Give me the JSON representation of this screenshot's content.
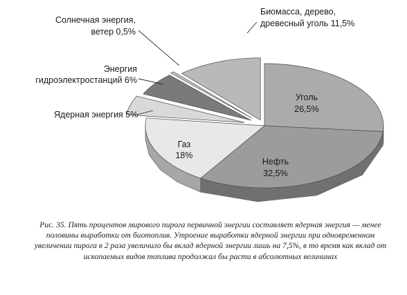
{
  "chart_data": {
    "type": "pie",
    "style": "3d-exploded",
    "slices": [
      {
        "id": "coal",
        "label": "Уголь",
        "value_label": "26,5%",
        "value": 26.5,
        "color": "#ababab"
      },
      {
        "id": "oil",
        "label": "Нефть",
        "value_label": "32,5%",
        "value": 32.5,
        "color": "#9c9c9c"
      },
      {
        "id": "gas",
        "label": "Газ",
        "value_label": "18%",
        "value": 18,
        "color": "#e8e8e8"
      },
      {
        "id": "nuclear",
        "label": "Ядерная энергия 5%",
        "value": 5,
        "color": "#d9d9d9"
      },
      {
        "id": "hydro",
        "label_lines": [
          "Энергия",
          "гидроэлектростанций 6%"
        ],
        "value": 6,
        "color": "#7a7a7a"
      },
      {
        "id": "solar",
        "label_lines": [
          "Солнечная энергия,",
          "ветер 0,5%"
        ],
        "value": 0.5,
        "color": "#c8c8c8"
      },
      {
        "id": "biomass",
        "label_lines": [
          "Биомасса, дерево,",
          "древесный уголь 11,5%"
        ],
        "value": 11.5,
        "color": "#b9b9b9"
      }
    ]
  },
  "caption": "Рис. 35. Пять процентов мирового пирога первичной энергии составляет ядерная энергия — менее половины выработки от биотоплив. Утроение выработки ядерной энергии при одновременном увеличении пирога в 2 раза увеличило бы вклад ядерной энергии лишь на 7,5%, в то время как вклад от ископаемых видов топлива продолжал бы расти в абсолютных величинах"
}
